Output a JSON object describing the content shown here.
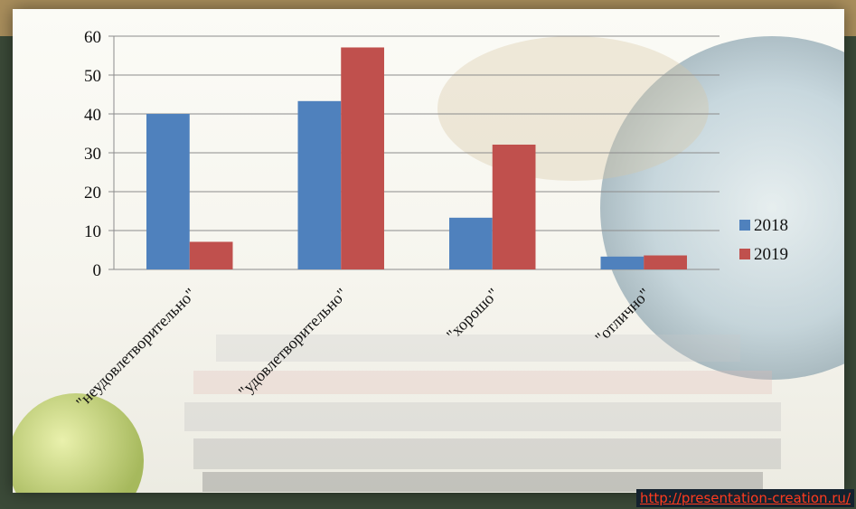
{
  "colors": {
    "series_2018": "#4f81bd",
    "series_2019": "#c0504d",
    "gridline": "#8c8c8c",
    "link": "#ff3b1f"
  },
  "footer": {
    "link_text": "http://presentation-creation.ru/"
  },
  "chart_data": {
    "type": "bar",
    "categories": [
      "\"неудовлетворительно\"",
      "\"удовлетворительно\"",
      "\"хорошо\"",
      "\"отлично\""
    ],
    "series": [
      {
        "name": "2018",
        "values": [
          40,
          43.3,
          13.3,
          3.3
        ]
      },
      {
        "name": "2019",
        "values": [
          7.1,
          57.1,
          32.1,
          3.6
        ]
      }
    ],
    "title": "",
    "xlabel": "",
    "ylabel": "",
    "ylim": [
      0,
      60
    ],
    "yticks": [
      "0",
      "10",
      "20",
      "30",
      "40",
      "50",
      "60"
    ],
    "grid": true,
    "legend_position": "right"
  }
}
